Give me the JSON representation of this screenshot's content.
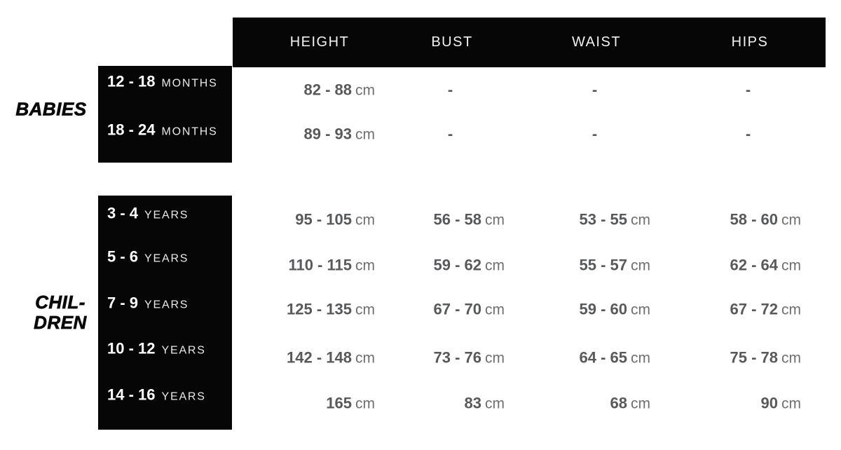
{
  "colors": {
    "page_bg": "#ffffff",
    "box_bg": "#060606",
    "header_text": "#f2f2f2",
    "age_number_text": "#ffffff",
    "age_unit_text": "#e9e9e9",
    "value_text": "#58595b",
    "unit_text": "#6e6f71",
    "side_label_text": "#0a0a0a"
  },
  "chart_data": {
    "type": "table",
    "columns": [
      "HEIGHT",
      "BUST",
      "WAIST",
      "HIPS"
    ],
    "unit": "cm",
    "groups": [
      {
        "label": "BABIES",
        "rows": [
          {
            "age": "12 - 18",
            "age_unit": "MONTHS",
            "height": "82 - 88",
            "height_unit": "cm",
            "bust": "-",
            "bust_unit": "",
            "waist": "-",
            "waist_unit": "",
            "hips": "-",
            "hips_unit": ""
          },
          {
            "age": "18 - 24",
            "age_unit": "MONTHS",
            "height": "89 - 93",
            "height_unit": "cm",
            "bust": "-",
            "bust_unit": "",
            "waist": "-",
            "waist_unit": "",
            "hips": "-",
            "hips_unit": ""
          }
        ]
      },
      {
        "label": "CHILDREN",
        "label_line1": "CHIL-",
        "label_line2": "DREN",
        "rows": [
          {
            "age": "3 - 4",
            "age_unit": "YEARS",
            "height": "95 - 105",
            "height_unit": "cm",
            "bust": "56 - 58",
            "bust_unit": "cm",
            "waist": "53 - 55",
            "waist_unit": "cm",
            "hips": "58 - 60",
            "hips_unit": "cm"
          },
          {
            "age": "5 - 6",
            "age_unit": "YEARS",
            "height": "110 - 115",
            "height_unit": "cm",
            "bust": "59 - 62",
            "bust_unit": "cm",
            "waist": "55 - 57",
            "waist_unit": "cm",
            "hips": "62 - 64",
            "hips_unit": "cm"
          },
          {
            "age": "7 - 9",
            "age_unit": "YEARS",
            "height": "125 - 135",
            "height_unit": "cm",
            "bust": "67 - 70",
            "bust_unit": "cm",
            "waist": "59 - 60",
            "waist_unit": "cm",
            "hips": "67 - 72",
            "hips_unit": "cm"
          },
          {
            "age": "10 - 12",
            "age_unit": "YEARS",
            "height": "142 - 148",
            "height_unit": "cm",
            "bust": "73 - 76",
            "bust_unit": "cm",
            "waist": "64 - 65",
            "waist_unit": "cm",
            "hips": "75 - 78",
            "hips_unit": "cm"
          },
          {
            "age": "14 - 16",
            "age_unit": "YEARS",
            "height": "165",
            "height_unit": "cm",
            "bust": "83",
            "bust_unit": "cm",
            "waist": "68",
            "waist_unit": "cm",
            "hips": "90",
            "hips_unit": "cm"
          }
        ]
      }
    ]
  }
}
